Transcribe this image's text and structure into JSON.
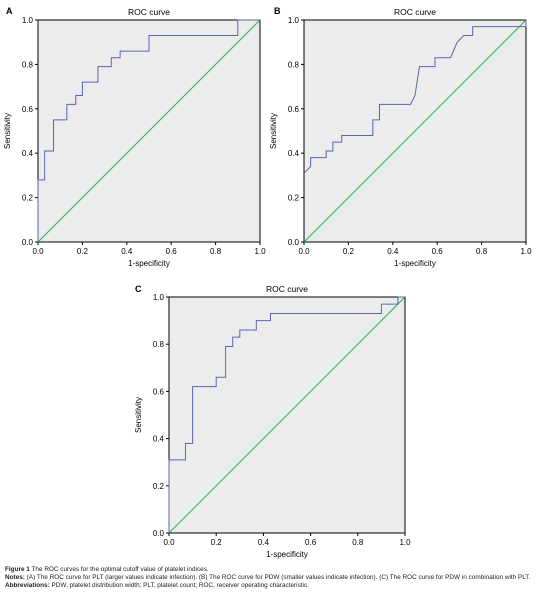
{
  "chart_data": [
    {
      "type": "line",
      "panel_label": "A",
      "title": "ROC curve",
      "xlabel": "1-specificity",
      "ylabel": "Sensitivity",
      "xlim": [
        0,
        1
      ],
      "ylim": [
        0,
        1
      ],
      "xticks": [
        "0.0",
        "0.2",
        "0.4",
        "0.6",
        "0.8",
        "1.0"
      ],
      "yticks": [
        "0.0",
        "0.2",
        "0.4",
        "0.6",
        "0.8",
        "1.0"
      ],
      "colors": {
        "roc": "#5a66b0",
        "reference": "#2ab24a",
        "background": "#ececec"
      },
      "grid": false,
      "series": [
        {
          "points": [
            [
              0,
              0
            ],
            [
              0,
              0.28
            ],
            [
              0.03,
              0.28
            ],
            [
              0.03,
              0.41
            ],
            [
              0.07,
              0.41
            ],
            [
              0.07,
              0.55
            ],
            [
              0.13,
              0.55
            ],
            [
              0.13,
              0.62
            ],
            [
              0.17,
              0.62
            ],
            [
              0.17,
              0.66
            ],
            [
              0.2,
              0.66
            ],
            [
              0.2,
              0.72
            ],
            [
              0.27,
              0.72
            ],
            [
              0.27,
              0.79
            ],
            [
              0.33,
              0.79
            ],
            [
              0.33,
              0.83
            ],
            [
              0.37,
              0.83
            ],
            [
              0.37,
              0.86
            ],
            [
              0.4,
              0.86
            ],
            [
              0.4,
              0.86
            ],
            [
              0.5,
              0.86
            ],
            [
              0.5,
              0.93
            ],
            [
              0.9,
              0.93
            ],
            [
              0.9,
              1
            ],
            [
              1,
              1
            ]
          ]
        },
        {
          "points": [
            [
              0,
              0
            ],
            [
              1,
              1
            ]
          ]
        }
      ]
    },
    {
      "type": "line",
      "panel_label": "B",
      "title": "ROC curve",
      "xlabel": "1-specificity",
      "ylabel": "Sensitivity",
      "xlim": [
        0,
        1
      ],
      "ylim": [
        0,
        1
      ],
      "xticks": [
        "0.0",
        "0.2",
        "0.4",
        "0.6",
        "0.8",
        "1.0"
      ],
      "yticks": [
        "0.0",
        "0.2",
        "0.4",
        "0.6",
        "0.8",
        "1.0"
      ],
      "colors": {
        "roc": "#5a66b0",
        "reference": "#2ab24a",
        "background": "#ececec"
      },
      "grid": false,
      "series": [
        {
          "points": [
            [
              0,
              0.31
            ],
            [
              0.03,
              0.34
            ],
            [
              0.03,
              0.38
            ],
            [
              0.1,
              0.38
            ],
            [
              0.1,
              0.41
            ],
            [
              0.13,
              0.41
            ],
            [
              0.13,
              0.45
            ],
            [
              0.17,
              0.45
            ],
            [
              0.17,
              0.48
            ],
            [
              0.31,
              0.48
            ],
            [
              0.31,
              0.55
            ],
            [
              0.34,
              0.55
            ],
            [
              0.34,
              0.59
            ],
            [
              0.34,
              0.62
            ],
            [
              0.48,
              0.62
            ],
            [
              0.5,
              0.66
            ],
            [
              0.52,
              0.79
            ],
            [
              0.59,
              0.79
            ],
            [
              0.59,
              0.83
            ],
            [
              0.66,
              0.83
            ],
            [
              0.69,
              0.9
            ],
            [
              0.72,
              0.93
            ],
            [
              0.76,
              0.93
            ],
            [
              0.76,
              0.97
            ],
            [
              1,
              0.97
            ],
            [
              1,
              1
            ]
          ]
        },
        {
          "points": [
            [
              0,
              0
            ],
            [
              1,
              1
            ]
          ]
        }
      ]
    },
    {
      "type": "line",
      "panel_label": "C",
      "title": "ROC curve",
      "xlabel": "1-specificity",
      "ylabel": "Sensitivity",
      "xlim": [
        0,
        1
      ],
      "ylim": [
        0,
        1
      ],
      "xticks": [
        "0.0",
        "0.2",
        "0.4",
        "0.6",
        "0.8",
        "1.0"
      ],
      "yticks": [
        "0.0",
        "0.2",
        "0.4",
        "0.6",
        "0.8",
        "1.0"
      ],
      "colors": {
        "roc": "#5a66b0",
        "reference": "#2ab24a",
        "background": "#ececec"
      },
      "grid": false,
      "series": [
        {
          "points": [
            [
              0,
              0
            ],
            [
              0,
              0.31
            ],
            [
              0.07,
              0.31
            ],
            [
              0.07,
              0.38
            ],
            [
              0.1,
              0.38
            ],
            [
              0.1,
              0.62
            ],
            [
              0.2,
              0.62
            ],
            [
              0.2,
              0.66
            ],
            [
              0.24,
              0.66
            ],
            [
              0.24,
              0.79
            ],
            [
              0.27,
              0.79
            ],
            [
              0.27,
              0.83
            ],
            [
              0.3,
              0.83
            ],
            [
              0.3,
              0.86
            ],
            [
              0.37,
              0.86
            ],
            [
              0.37,
              0.9
            ],
            [
              0.43,
              0.9
            ],
            [
              0.43,
              0.93
            ],
            [
              0.9,
              0.93
            ],
            [
              0.9,
              0.97
            ],
            [
              0.97,
              0.97
            ],
            [
              0.97,
              1
            ],
            [
              1,
              1
            ]
          ]
        },
        {
          "points": [
            [
              0,
              0
            ],
            [
              1,
              1
            ]
          ]
        }
      ]
    }
  ],
  "caption": {
    "figure_label": "Figure 1",
    "figure_text": "The ROC curves for the optimal cutoff value of platelet indices.",
    "notes_label": "Notes:",
    "notes_text": "(A) The ROC curve for PLT (larger values indicate infection). (B) The ROC curve for PDW (smaller values indicate infection). (C) The ROC curve for PDW in combination with PLT.",
    "abbrev_label": "Abbreviations:",
    "abbrev_text": "PDW, platelet distribution width; PLT, platelet count; ROC, receiver operating characteristic."
  }
}
